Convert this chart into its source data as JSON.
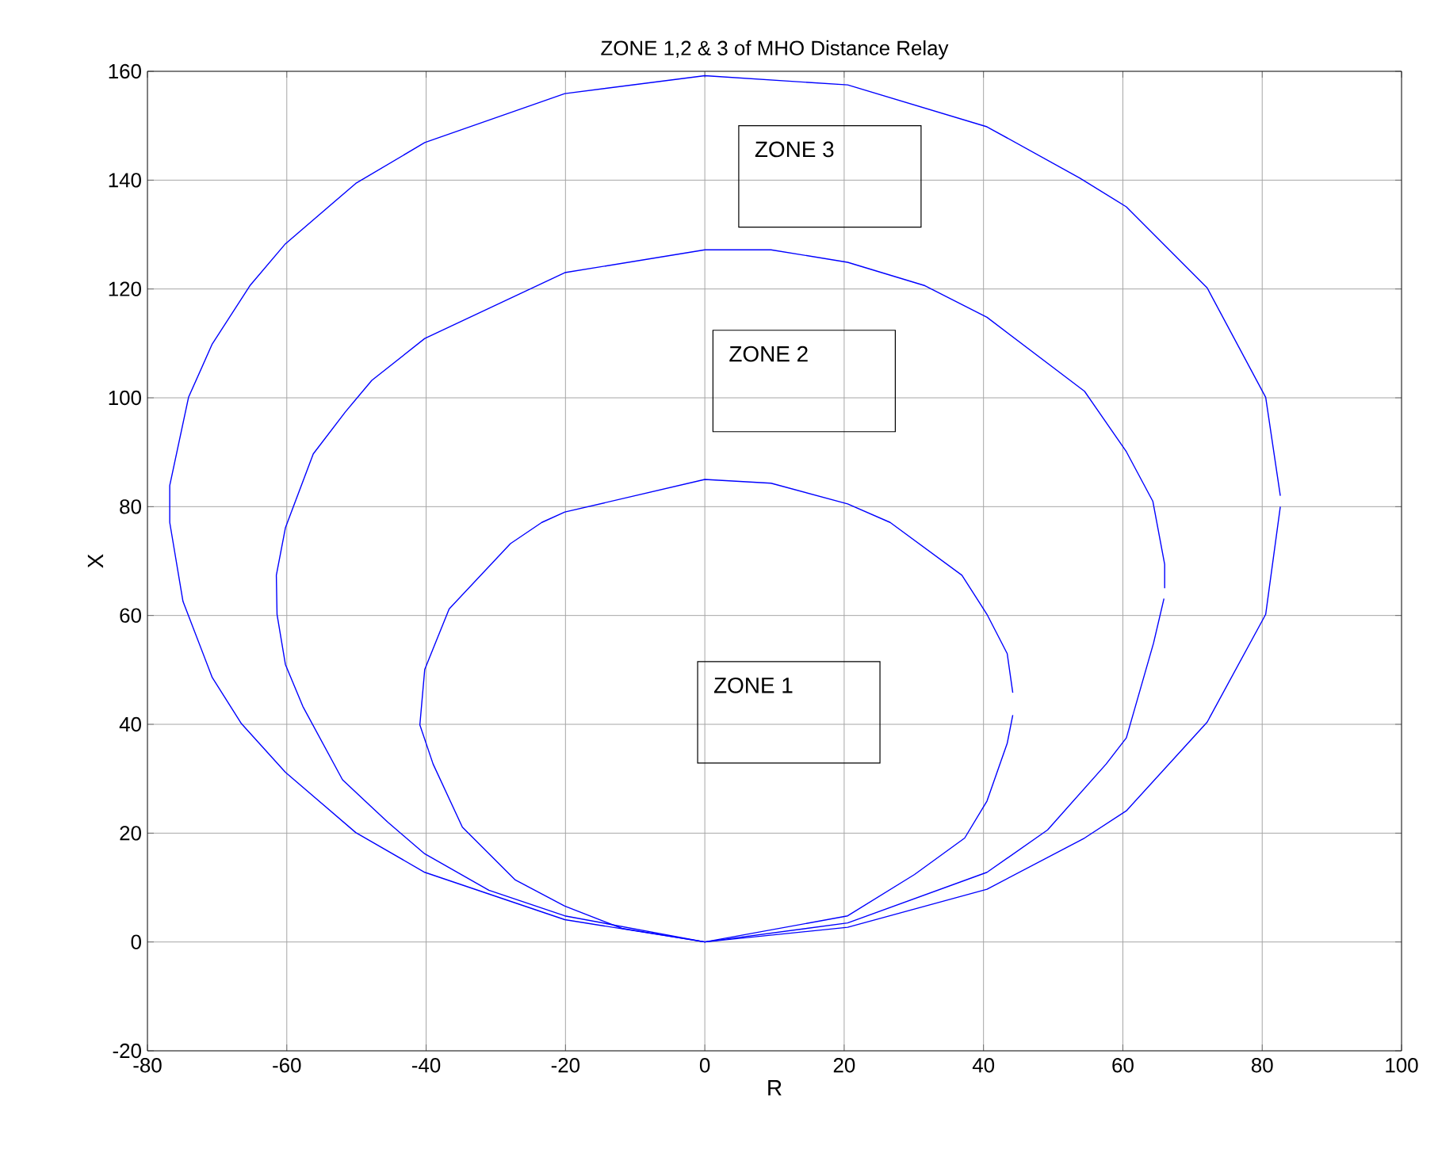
{
  "chart_data": {
    "type": "line",
    "title": "ZONE 1,2 & 3 of MHO Distance Relay",
    "xlabel": "R",
    "ylabel": "X",
    "xlim": [
      -80,
      100
    ],
    "ylim": [
      -20,
      160
    ],
    "xticks": [
      -80,
      -60,
      -40,
      -20,
      0,
      20,
      40,
      60,
      80,
      100
    ],
    "yticks": [
      -20,
      0,
      20,
      40,
      60,
      80,
      100,
      120,
      140,
      160
    ],
    "grid": true,
    "series": [
      {
        "color": "#0000ff",
        "x": [
          44.2,
          43.4,
          40.5,
          36.9,
          26.6,
          20.5,
          9.5,
          0,
          -20.1,
          -23.4,
          -27.9,
          -36.7,
          -40.2,
          -40.9,
          -39,
          -34.8,
          -27.2,
          -20.1,
          -11.9,
          0,
          20.5,
          30.1,
          37.3,
          40.5,
          43.4,
          44.2
        ],
        "values": [
          45.8,
          53,
          60.2,
          67.4,
          77.1,
          80.5,
          84.3,
          85,
          79,
          77.1,
          73.2,
          61.2,
          50.1,
          39.9,
          32.7,
          21.1,
          11.4,
          6.6,
          2.5,
          0,
          4.8,
          12.4,
          19.1,
          25.9,
          36.5,
          41.7
        ]
      },
      {
        "color": "#0000ff",
        "x": [
          66,
          66,
          64.3,
          60.5,
          54.5,
          40.5,
          31.6,
          20.5,
          9.5,
          0,
          -20.1,
          -40.2,
          -47.8,
          -51.6,
          -56.2,
          -60.2,
          -61.5,
          -61.4,
          -60.2,
          -57.7,
          -52,
          -45.5,
          -40.2,
          -31,
          -20.1,
          0,
          20.5,
          40.5,
          49.2,
          57.6,
          60.5,
          64.4,
          65.9
        ],
        "values": [
          65,
          69.4,
          81,
          90.1,
          101.2,
          114.8,
          120.6,
          124.9,
          127.2,
          127.2,
          123,
          110.9,
          103.2,
          97.4,
          89.7,
          76.1,
          67.4,
          60.2,
          51,
          43.3,
          29.8,
          22,
          16.2,
          9.5,
          4.8,
          0,
          3.5,
          12.8,
          20.6,
          32.7,
          37.5,
          54.9,
          63.1
        ]
      },
      {
        "color": "#0000ff",
        "x": [
          82.6,
          80.5,
          72.1,
          60.5,
          53.8,
          40.5,
          20.5,
          0,
          -20.1,
          -40.2,
          -50.1,
          -60.2,
          -65.3,
          -70.7,
          -74.1,
          -76.8,
          -76.8,
          -74.9,
          -70.7,
          -66.5,
          -60.2,
          -50.1,
          -40.2,
          -20.1,
          0,
          20.5,
          40.5,
          54.5,
          60.5,
          72.1,
          80.5,
          82.6
        ],
        "values": [
          82,
          100.1,
          120.2,
          135.1,
          140.4,
          149.8,
          157.5,
          159.2,
          155.9,
          146.9,
          139.4,
          128.3,
          120.6,
          109.9,
          100.1,
          83.9,
          77.1,
          62.6,
          48.6,
          40.1,
          31.2,
          20.1,
          12.8,
          4.1,
          0,
          2.7,
          9.7,
          19.1,
          24.1,
          40.4,
          60.2,
          80
        ]
      }
    ],
    "annotations": [
      "ZONE 1",
      "ZONE 2",
      "ZONE 3"
    ]
  }
}
